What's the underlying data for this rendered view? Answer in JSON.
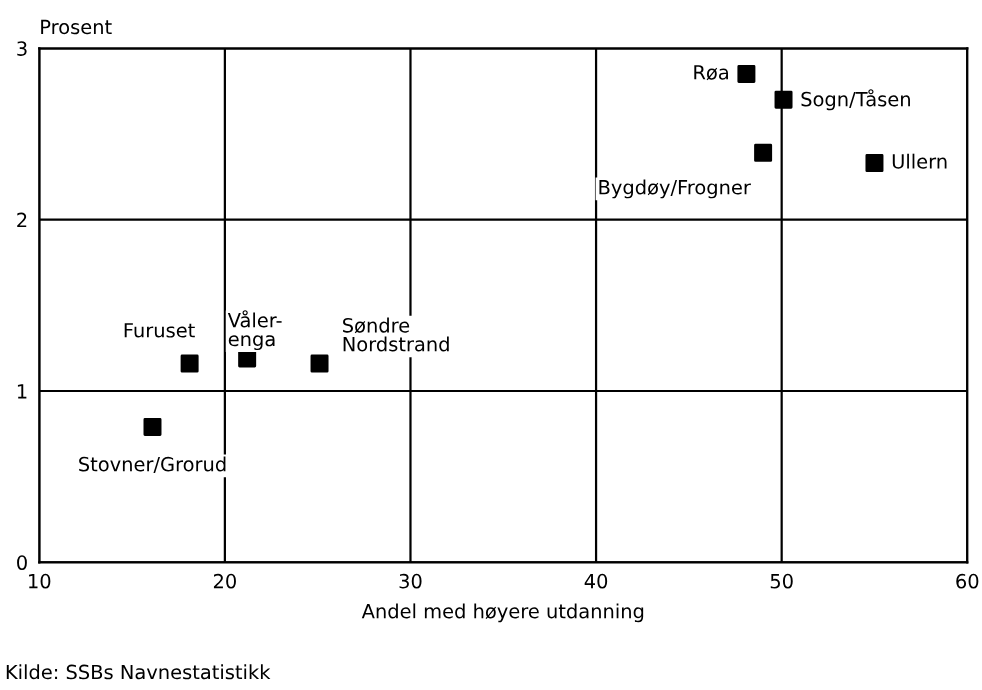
{
  "chart_data": {
    "type": "scatter",
    "xlabel": "Andel med høyere utdanning",
    "ylabel": "Prosent",
    "x": [
      48.1,
      50.1,
      49.0,
      55.0,
      18.1,
      21.2,
      25.1,
      16.1
    ],
    "series": [
      {
        "color": "#000000",
        "values": [
          2.85,
          2.7,
          2.39,
          2.33,
          1.16,
          1.19,
          1.16,
          0.79
        ]
      }
    ],
    "xlim": [
      10,
      60
    ],
    "ylim": [
      0,
      3
    ],
    "xticks": [
      10,
      20,
      30,
      40,
      50,
      60
    ],
    "yticks": [
      0,
      1,
      2,
      3
    ],
    "grid": true,
    "legend": false,
    "marker": "square",
    "annotations": [
      {
        "text": "Røa",
        "x": 48.1,
        "y": 2.85
      },
      {
        "text": "Sogn/Tåsen",
        "x": 50.1,
        "y": 2.7
      },
      {
        "text": "Bygdøy/Frogner",
        "x": 49.0,
        "y": 2.39
      },
      {
        "text": "Ullern",
        "x": 55.0,
        "y": 2.33
      },
      {
        "text": "Furuset",
        "x": 18.1,
        "y": 1.16
      },
      {
        "text": "Våler-\nenga",
        "x": 21.2,
        "y": 1.19
      },
      {
        "text": "Søndre\nNordstrand",
        "x": 25.1,
        "y": 1.16
      },
      {
        "text": "Stovner/Grorud",
        "x": 16.1,
        "y": 0.79
      },
      "Kilde: SSBs Navnestatistikk"
    ]
  }
}
